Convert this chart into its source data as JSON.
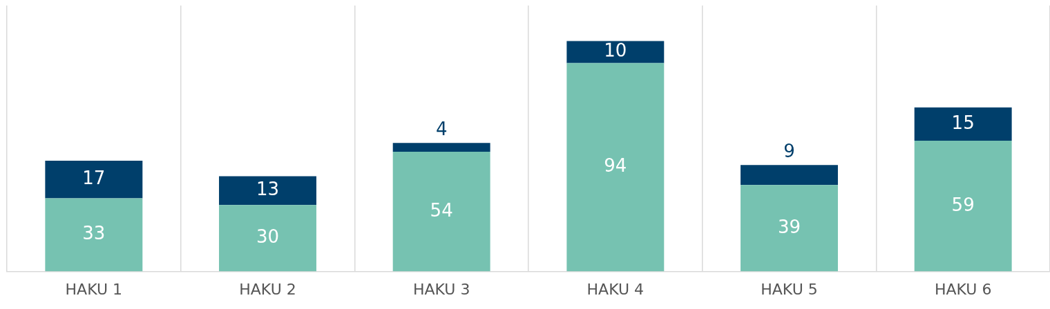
{
  "chart_data": {
    "type": "bar",
    "stacked": true,
    "categories": [
      "HAKU 1",
      "HAKU 2",
      "HAKU 3",
      "HAKU 4",
      "HAKU 5",
      "HAKU 6"
    ],
    "series": [
      {
        "color": "#76c2b1",
        "values": [
          33,
          30,
          54,
          94,
          39,
          59
        ]
      },
      {
        "color": "#003f6b",
        "values": [
          17,
          13,
          4,
          10,
          9,
          15
        ]
      }
    ],
    "data_labels": true,
    "grid": "x",
    "legend": false
  }
}
